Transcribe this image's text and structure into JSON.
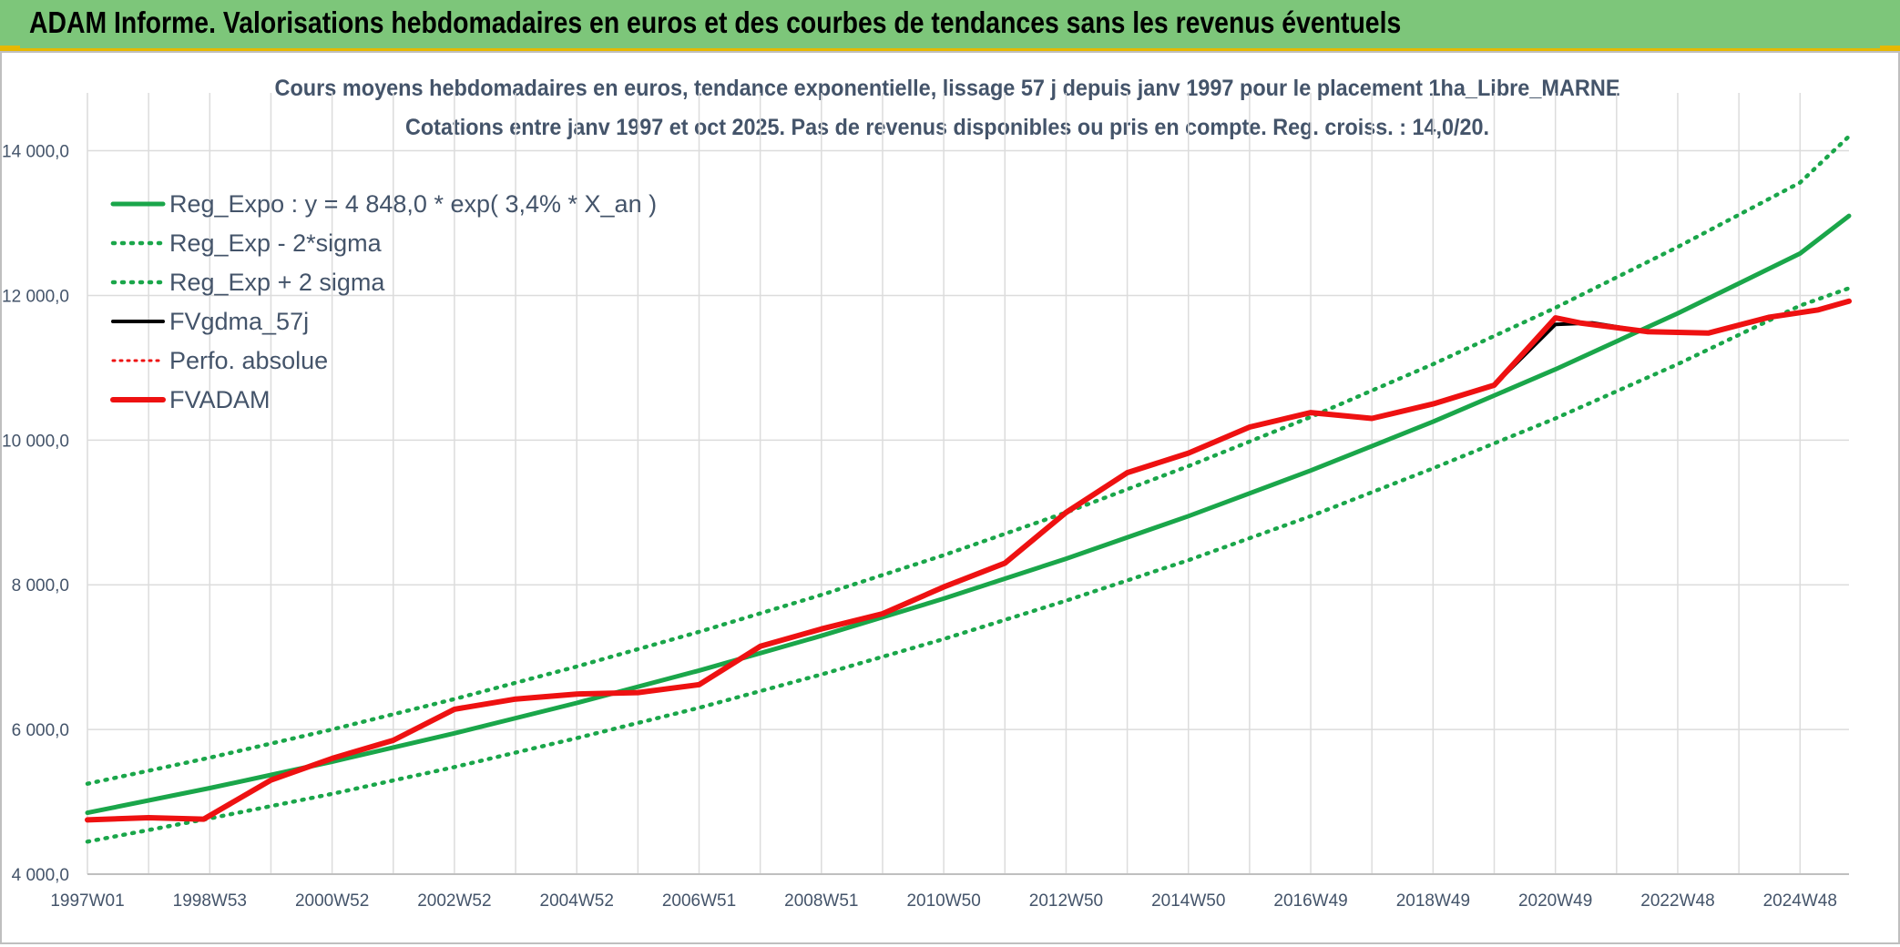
{
  "banner": {
    "title": "ADAM Informe. Valorisations hebdomadaires en euros et des courbes de tendances sans les revenus éventuels"
  },
  "colors": {
    "banner_bg": "#7dc67a",
    "trend": "#1aa64a",
    "fv": "#ee1111",
    "gdma": "#000000",
    "grid": "#dcdcdc"
  },
  "chart_data": {
    "type": "line",
    "title": "Cours moyens hebdomadaires en euros, tendance exponentielle, lissage 57 j depuis janv 1997 pour le placement 1ha_Libre_MARNE",
    "subtitle": "Cotations entre janv 1997 et oct 2025. Pas de revenus disponibles ou pris en compte. Reg. croiss. : 14,0/20.",
    "xlabel": "",
    "ylabel": "",
    "ylim": [
      4000,
      14800
    ],
    "y_ticks": [
      "4 000,0",
      "6 000,0",
      "8 000,0",
      "10 000,0",
      "12 000,0",
      "14 000,0"
    ],
    "y_tick_values": [
      4000,
      6000,
      8000,
      10000,
      12000,
      14000
    ],
    "xlim": [
      1997.0,
      2025.8
    ],
    "x_tick_labels": [
      "1997W01",
      "1998W53",
      "2000W52",
      "2002W52",
      "2004W52",
      "2006W51",
      "2008W51",
      "2010W50",
      "2012W50",
      "2014W50",
      "2016W49",
      "2018W49",
      "2020W49",
      "2022W48",
      "2024W48"
    ],
    "x_tick_values": [
      1997.0,
      1999.0,
      2001.0,
      2003.0,
      2005.0,
      2007.0,
      2009.0,
      2011.0,
      2013.0,
      2015.0,
      2017.0,
      2019.0,
      2021.0,
      2023.0,
      2025.0
    ],
    "grid": true,
    "legend_position": "top-left",
    "series": [
      {
        "name": "Reg_Expo : y = 4 848,0 * exp( 3,4% *  X_an )",
        "style": "solid-green-thick",
        "x": [
          1997.0,
          1999.0,
          2001.0,
          2003.0,
          2005.0,
          2007.0,
          2009.0,
          2011.0,
          2013.0,
          2015.0,
          2017.0,
          2019.0,
          2021.0,
          2023.0,
          2025.0,
          2025.8
        ],
        "values": [
          4848,
          5190,
          5555,
          5947,
          6366,
          6815,
          7295,
          7809,
          8360,
          8949,
          9580,
          10255,
          10978,
          11752,
          12580,
          13100
        ]
      },
      {
        "name": "Reg_Exp - 2*sigma",
        "style": "dotted-green",
        "x": [
          1997.0,
          1999.0,
          2001.0,
          2003.0,
          2005.0,
          2007.0,
          2009.0,
          2011.0,
          2013.0,
          2015.0,
          2017.0,
          2019.0,
          2021.0,
          2023.0,
          2025.0,
          2025.8
        ],
        "values": [
          4450,
          4770,
          5110,
          5480,
          5880,
          6300,
          6760,
          7250,
          7780,
          8340,
          8950,
          9610,
          10300,
          11050,
          11860,
          12100
        ]
      },
      {
        "name": "Reg_Exp + 2 sigma",
        "style": "dotted-green",
        "x": [
          1997.0,
          1999.0,
          2001.0,
          2003.0,
          2005.0,
          2007.0,
          2009.0,
          2011.0,
          2013.0,
          2015.0,
          2017.0,
          2019.0,
          2021.0,
          2023.0,
          2025.0,
          2025.8
        ],
        "values": [
          5250,
          5610,
          6000,
          6420,
          6870,
          7350,
          7860,
          8410,
          9000,
          9640,
          10320,
          11050,
          11830,
          12670,
          13560,
          14200
        ]
      },
      {
        "name": "FVgdma_57j",
        "style": "solid-black",
        "x": [
          1997.0,
          1998.0,
          1998.9,
          2000.0,
          2001.0,
          2002.0,
          2003.0,
          2004.0,
          2005.0,
          2006.0,
          2007.0,
          2008.0,
          2009.0,
          2010.0,
          2011.0,
          2012.0,
          2013.0,
          2014.0,
          2015.0,
          2016.0,
          2017.0,
          2018.0,
          2019.0,
          2020.0,
          2021.0,
          2021.6,
          2022.5,
          2023.5,
          2024.5,
          2025.3,
          2025.8
        ],
        "values": [
          4750,
          4780,
          4760,
          5300,
          5600,
          5850,
          6280,
          6420,
          6490,
          6510,
          6620,
          7150,
          7390,
          7600,
          7970,
          8300,
          9000,
          9550,
          9820,
          10180,
          10380,
          10300,
          10500,
          10760,
          11600,
          11620,
          11500,
          11480,
          11700,
          11800,
          11920
        ]
      },
      {
        "name": "Perfo. absolue",
        "style": "dotted-red",
        "x": [],
        "values": []
      },
      {
        "name": "FVADAM",
        "style": "solid-red-thick",
        "x": [
          1997.0,
          1998.0,
          1998.9,
          2000.0,
          2001.0,
          2002.0,
          2003.0,
          2004.0,
          2005.0,
          2006.0,
          2007.0,
          2008.0,
          2009.0,
          2010.0,
          2011.0,
          2012.0,
          2013.0,
          2014.0,
          2015.0,
          2016.0,
          2017.0,
          2018.0,
          2019.0,
          2020.0,
          2021.0,
          2021.4,
          2022.5,
          2023.5,
          2024.5,
          2025.3,
          2025.8
        ],
        "values": [
          4750,
          4780,
          4760,
          5300,
          5600,
          5850,
          6280,
          6420,
          6490,
          6510,
          6620,
          7150,
          7390,
          7600,
          7970,
          8300,
          9000,
          9550,
          9820,
          10180,
          10380,
          10300,
          10500,
          10760,
          11690,
          11620,
          11500,
          11480,
          11700,
          11800,
          11920
        ]
      }
    ]
  }
}
